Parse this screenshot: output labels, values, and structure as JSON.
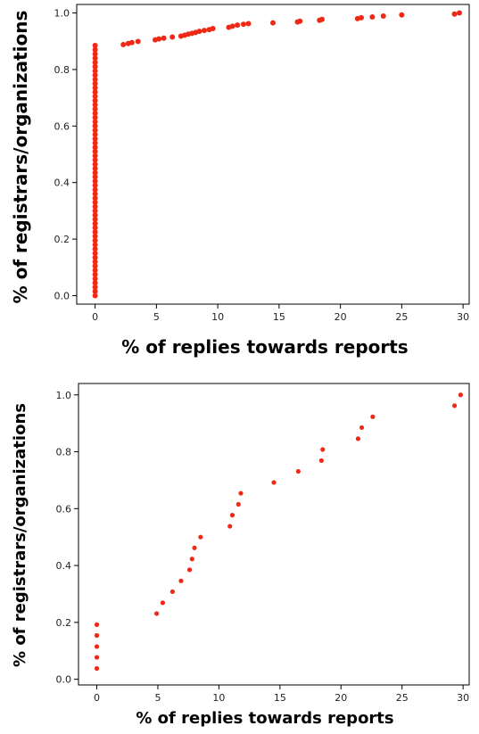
{
  "chart_data": [
    {
      "type": "scatter",
      "xlabel": "% of replies towards reports",
      "ylabel": "% of registrars/organizations",
      "xlim": [
        -1.5,
        30.5
      ],
      "ylim": [
        -0.03,
        1.03
      ],
      "xticks": [
        0,
        5,
        10,
        15,
        20,
        25,
        30
      ],
      "yticks": [
        0.0,
        0.2,
        0.4,
        0.6,
        0.8,
        1.0
      ],
      "ytick_labels": [
        "0.0",
        "0.2",
        "0.4",
        "0.6",
        "0.8",
        "1.0"
      ],
      "xtick_labels": [
        "0",
        "5",
        "10",
        "15",
        "20",
        "25",
        "30"
      ],
      "grid": false,
      "marker_color": "#ee2a16",
      "zero_column": {
        "x": 0,
        "y_from": 0.0,
        "y_to": 0.885,
        "count": 60
      },
      "points": [
        [
          2.3,
          0.888
        ],
        [
          2.7,
          0.892
        ],
        [
          3.0,
          0.895
        ],
        [
          3.5,
          0.899
        ],
        [
          4.9,
          0.905
        ],
        [
          5.2,
          0.908
        ],
        [
          5.6,
          0.911
        ],
        [
          6.3,
          0.915
        ],
        [
          7.0,
          0.918
        ],
        [
          7.3,
          0.921
        ],
        [
          7.6,
          0.925
        ],
        [
          7.9,
          0.928
        ],
        [
          8.2,
          0.931
        ],
        [
          8.5,
          0.935
        ],
        [
          8.9,
          0.938
        ],
        [
          9.3,
          0.941
        ],
        [
          9.6,
          0.945
        ],
        [
          10.9,
          0.949
        ],
        [
          11.2,
          0.953
        ],
        [
          11.6,
          0.957
        ],
        [
          12.1,
          0.96
        ],
        [
          12.5,
          0.962
        ],
        [
          14.5,
          0.965
        ],
        [
          16.5,
          0.968
        ],
        [
          16.7,
          0.971
        ],
        [
          18.3,
          0.974
        ],
        [
          18.5,
          0.977
        ],
        [
          21.4,
          0.98
        ],
        [
          21.7,
          0.983
        ],
        [
          22.6,
          0.986
        ],
        [
          23.5,
          0.989
        ],
        [
          25.0,
          0.993
        ],
        [
          29.3,
          0.996
        ],
        [
          29.7,
          1.0
        ]
      ]
    },
    {
      "type": "scatter",
      "xlabel": "% of replies towards reports",
      "ylabel": "% of registrars/organizations",
      "xlim": [
        -1.5,
        30.5
      ],
      "ylim": [
        -0.02,
        1.04
      ],
      "xticks": [
        0,
        5,
        10,
        15,
        20,
        25,
        30
      ],
      "yticks": [
        0.0,
        0.2,
        0.4,
        0.6,
        0.8,
        1.0
      ],
      "ytick_labels": [
        "0.0",
        "0.2",
        "0.4",
        "0.6",
        "0.8",
        "1.0"
      ],
      "xtick_labels": [
        "0",
        "5",
        "10",
        "15",
        "20",
        "25",
        "30"
      ],
      "grid": false,
      "marker_color": "#ee2a16",
      "points": [
        [
          0,
          0.038
        ],
        [
          0,
          0.077
        ],
        [
          0,
          0.115
        ],
        [
          0,
          0.154
        ],
        [
          0,
          0.192
        ],
        [
          4.9,
          0.231
        ],
        [
          5.4,
          0.269
        ],
        [
          6.2,
          0.308
        ],
        [
          6.9,
          0.346
        ],
        [
          7.6,
          0.385
        ],
        [
          7.8,
          0.423
        ],
        [
          8.0,
          0.462
        ],
        [
          8.5,
          0.5
        ],
        [
          10.9,
          0.538
        ],
        [
          11.1,
          0.577
        ],
        [
          11.6,
          0.615
        ],
        [
          11.8,
          0.654
        ],
        [
          14.5,
          0.692
        ],
        [
          16.5,
          0.731
        ],
        [
          18.4,
          0.769
        ],
        [
          18.5,
          0.808
        ],
        [
          21.4,
          0.846
        ],
        [
          21.7,
          0.885
        ],
        [
          22.6,
          0.923
        ],
        [
          29.3,
          0.962
        ],
        [
          29.8,
          1.0
        ]
      ]
    }
  ]
}
